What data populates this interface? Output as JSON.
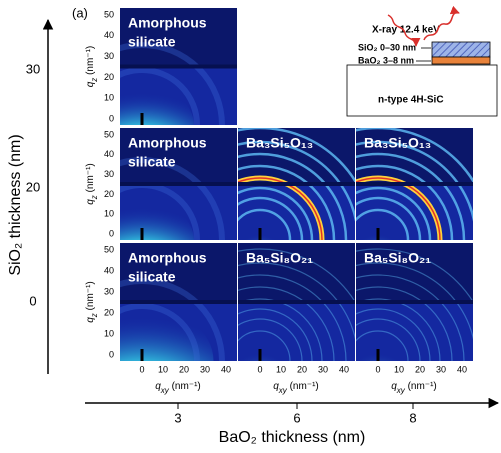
{
  "panel_label": "(a)",
  "y_axis": {
    "title": "SiO₂ thickness (nm)",
    "ticks": [
      30,
      20,
      0
    ]
  },
  "x_axis": {
    "title": "BaO₂ thickness (nm)",
    "ticks": [
      3,
      6,
      8
    ]
  },
  "qz_label": {
    "symbol": "q",
    "subscript": "z",
    "unit": " (nm⁻¹)"
  },
  "qz_ticks": [
    0,
    10,
    20,
    30,
    40,
    50
  ],
  "qxy_label": {
    "symbol": "q",
    "subscript": "xy",
    "unit": " (nm⁻¹)"
  },
  "qxy_ticks": [
    0,
    10,
    20,
    30,
    40
  ],
  "rows": [
    [
      {
        "lines": [
          "Amorphous",
          "silicate"
        ]
      }
    ],
    [
      {
        "lines": [
          "Amorphous",
          "silicate"
        ]
      },
      {
        "lines": [
          "Ba₃Si₅O₁₃"
        ]
      },
      {
        "lines": [
          "Ba₃Si₅O₁₃"
        ]
      }
    ],
    [
      {
        "lines": [
          "Amorphous",
          "silicate"
        ]
      },
      {
        "lines": [
          "Ba₅Si₈O₂₁"
        ]
      },
      {
        "lines": [
          "Ba₅Si₈O₂₁"
        ]
      }
    ]
  ],
  "inset": {
    "xray": "X-ray 12.4 keV",
    "layer_sio2": "SiO₂ 0–30 nm",
    "layer_bao2": "BaO₂ 3–8 nm",
    "substrate": "n-type 4H-SiC"
  }
}
